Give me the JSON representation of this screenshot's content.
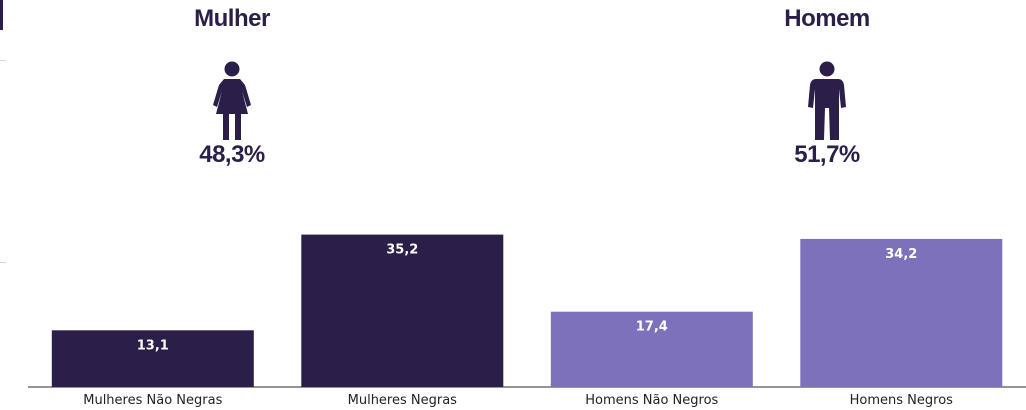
{
  "groups": [
    {
      "title": "Mulher",
      "percent": "48,3%",
      "icon": "woman-icon"
    },
    {
      "title": "Homem",
      "percent": "51,7%",
      "icon": "man-icon"
    }
  ],
  "colors": {
    "dark": "#2b1f49",
    "light": "#7e71bc"
  },
  "chart_data": {
    "type": "bar",
    "categories": [
      "Mulheres Não Negras",
      "Mulheres Negras",
      "Homens Não Negros",
      "Homens Negros"
    ],
    "values": [
      13.1,
      35.2,
      17.4,
      34.2
    ],
    "value_labels": [
      "13,1",
      "35,2",
      "17,4",
      "34,2"
    ],
    "bar_colors": [
      "#2b1f49",
      "#2b1f49",
      "#7e71bc",
      "#7e71bc"
    ],
    "title": "",
    "xlabel": "",
    "ylabel": "",
    "ylim": [
      0,
      38
    ],
    "grid": false,
    "legend": "none"
  }
}
